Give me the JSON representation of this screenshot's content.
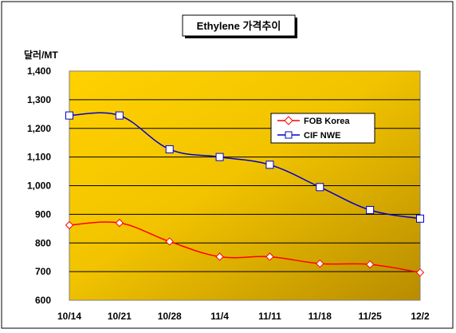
{
  "chart_data": {
    "type": "line",
    "title": "Ethylene 가격추이",
    "ylabel": "달러/MT",
    "xlabel": "",
    "categories": [
      "10/14",
      "10/21",
      "10/28",
      "11/4",
      "11/11",
      "11/18",
      "11/25",
      "12/2"
    ],
    "ylim": [
      600,
      1400
    ],
    "yticks": [
      600,
      700,
      800,
      900,
      1000,
      1100,
      1200,
      1300,
      1400
    ],
    "ytick_labels": [
      "600",
      "700",
      "800",
      "900",
      "1,000",
      "1,100",
      "1,200",
      "1,300",
      "1,400"
    ],
    "grid": true,
    "legend": "upper-right",
    "series": [
      {
        "name": "FOB Korea",
        "color": "#ff0000",
        "marker": "diamond",
        "values": [
          862,
          870,
          805,
          752,
          752,
          728,
          725,
          697
        ]
      },
      {
        "name": "CIF NWE",
        "color": "#0000cc",
        "marker": "square",
        "values": [
          1245,
          1245,
          1127,
          1100,
          1073,
          995,
          915,
          885
        ]
      }
    ]
  }
}
